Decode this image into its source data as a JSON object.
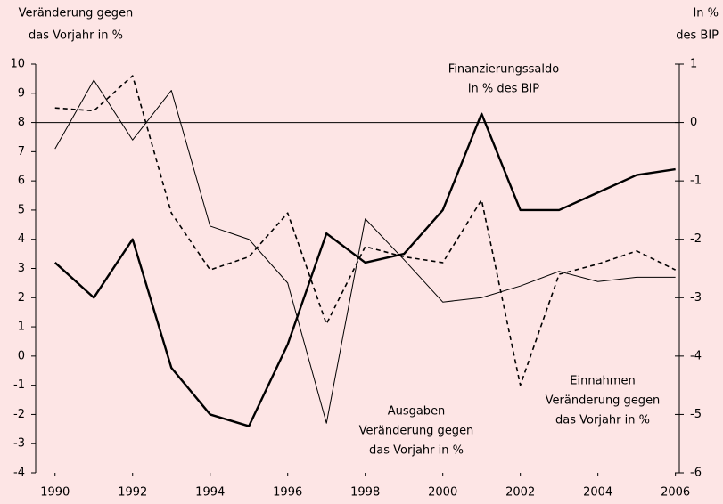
{
  "chart_data": {
    "type": "line",
    "y_label": [
      "Veränderung gegen",
      "das Vorjahr in %"
    ],
    "y2_label": [
      "In %",
      "des BIP"
    ],
    "annotations": [
      [
        "Finanzierungssaldo",
        "in % des BIP"
      ],
      [
        "Ausgaben",
        "Veränderung gegen",
        "das Vorjahr in %"
      ],
      [
        "Einnahmen",
        "Veränderung gegen",
        "das Vorjahr in %"
      ]
    ],
    "x": [
      1990,
      1991,
      1992,
      1993,
      1994,
      1995,
      1996,
      1997,
      1998,
      1999,
      2000,
      2001,
      2002,
      2003,
      2004,
      2005,
      2006
    ],
    "xlim": [
      1989.5,
      2006.1
    ],
    "xticks": [
      1990,
      1992,
      1994,
      1996,
      1998,
      2000,
      2002,
      2004,
      2006
    ],
    "ylim": [
      -4,
      10
    ],
    "yticks": [
      -4,
      -3,
      -2,
      -1,
      0,
      1,
      2,
      3,
      4,
      5,
      6,
      7,
      8,
      9,
      10
    ],
    "y2lim": [
      -6,
      1
    ],
    "y2ticks": [
      -6,
      -5,
      -4,
      -3,
      -2,
      -1,
      0,
      1
    ],
    "reference_line": {
      "axis": "y2",
      "value": 0
    },
    "series": [
      {
        "name": "Ausgaben",
        "color": "#000000",
        "width": 1,
        "dashed": false,
        "values": [
          7.1,
          9.45,
          7.4,
          9.1,
          4.45,
          4.0,
          2.5,
          -2.3,
          4.7,
          3.3,
          1.85,
          2.0,
          2.4,
          2.9,
          2.55,
          2.7,
          2.7
        ]
      },
      {
        "name": "Einnahmen",
        "color": "#000000",
        "width": 1.6,
        "dashed": true,
        "values": [
          8.5,
          8.4,
          9.6,
          4.9,
          2.95,
          3.4,
          4.9,
          1.1,
          3.75,
          3.4,
          3.2,
          5.35,
          -1.0,
          2.8,
          3.15,
          3.6,
          2.95
        ]
      },
      {
        "name": "Finanzierungssaldo",
        "color": "#000000",
        "width": 2.4,
        "dashed": false,
        "axis": "y2",
        "values": [
          -2.4,
          -3.0,
          -2.0,
          -4.2,
          -5.0,
          -5.2,
          -3.8,
          -1.9,
          -2.4,
          -2.25,
          -1.5,
          0.15,
          -1.5,
          -1.5,
          -1.2,
          -0.9,
          -0.8
        ]
      }
    ]
  }
}
